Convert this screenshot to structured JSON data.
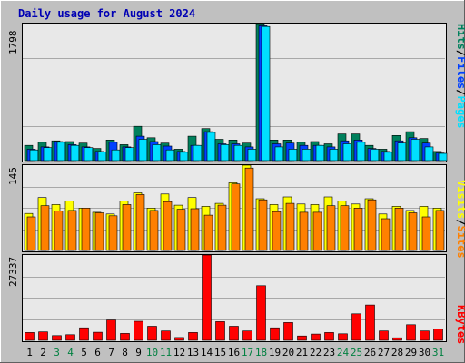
{
  "title": "Daily usage for August 2024",
  "colors": {
    "background": "#c0c0c0",
    "plot_background": "#e8e8e8",
    "title": "#0000b4",
    "hits": "#00805c",
    "files": "#0040ff",
    "pages": "#00e0ff",
    "visits": "#ffff00",
    "sites": "#ff8000",
    "kbytes": "#ff0000",
    "weekend_label": "#008040"
  },
  "legend": {
    "pages": "Pages",
    "files": "Files",
    "hits": "Hits",
    "sep": "/",
    "sites": "Sites",
    "visits": "Visits",
    "kbytes": "KBytes"
  },
  "chart_data": [
    {
      "type": "bar",
      "panel": "hits-files-pages",
      "ymax_label": "1798",
      "ylim": [
        0,
        1798
      ],
      "grid": true,
      "categories": [
        "1",
        "2",
        "3",
        "4",
        "5",
        "6",
        "7",
        "8",
        "9",
        "10",
        "11",
        "12",
        "13",
        "14",
        "15",
        "16",
        "17",
        "18",
        "19",
        "20",
        "21",
        "22",
        "23",
        "24",
        "25",
        "26",
        "27",
        "28",
        "29",
        "30",
        "31"
      ],
      "weekend_days": [
        "3",
        "4",
        "10",
        "11",
        "17",
        "18",
        "24",
        "25",
        "31"
      ],
      "series": [
        {
          "name": "Hits",
          "values": [
            200,
            240,
            260,
            250,
            230,
            160,
            270,
            210,
            450,
            300,
            230,
            150,
            320,
            420,
            280,
            270,
            230,
            1798,
            270,
            270,
            240,
            250,
            220,
            350,
            350,
            200,
            150,
            330,
            380,
            290,
            120
          ]
        },
        {
          "name": "Files",
          "values": [
            150,
            180,
            250,
            210,
            180,
            120,
            240,
            180,
            320,
            250,
            190,
            120,
            200,
            380,
            220,
            220,
            180,
            1770,
            220,
            230,
            200,
            200,
            180,
            260,
            270,
            160,
            120,
            260,
            300,
            230,
            100
          ]
        },
        {
          "name": "Pages",
          "values": [
            140,
            170,
            240,
            200,
            170,
            115,
            140,
            170,
            280,
            210,
            140,
            110,
            200,
            370,
            210,
            200,
            150,
            1760,
            180,
            150,
            150,
            200,
            150,
            220,
            240,
            150,
            110,
            230,
            280,
            180,
            95
          ]
        }
      ]
    },
    {
      "type": "bar",
      "panel": "visits-sites",
      "ymax_label": "145",
      "ylim": [
        0,
        145
      ],
      "grid": true,
      "categories": [
        "1",
        "2",
        "3",
        "4",
        "5",
        "6",
        "7",
        "8",
        "9",
        "10",
        "11",
        "12",
        "13",
        "14",
        "15",
        "16",
        "17",
        "18",
        "19",
        "20",
        "21",
        "22",
        "23",
        "24",
        "25",
        "26",
        "27",
        "28",
        "29",
        "30",
        "31"
      ],
      "series": [
        {
          "name": "Visits",
          "values": [
            63,
            90,
            78,
            84,
            72,
            65,
            62,
            84,
            98,
            72,
            96,
            77,
            90,
            75,
            80,
            115,
            145,
            88,
            78,
            91,
            79,
            78,
            91,
            84,
            79,
            88,
            62,
            75,
            68,
            75,
            72
          ]
        },
        {
          "name": "Sites",
          "values": [
            57,
            76,
            67,
            68,
            72,
            64,
            59,
            78,
            95,
            68,
            83,
            70,
            71,
            60,
            77,
            113,
            140,
            86,
            66,
            80,
            65,
            65,
            76,
            76,
            72,
            86,
            54,
            72,
            64,
            57,
            68
          ]
        }
      ]
    },
    {
      "type": "bar",
      "panel": "kbytes",
      "ymax_label": "27337",
      "ylim": [
        0,
        27337
      ],
      "grid": true,
      "categories": [
        "1",
        "2",
        "3",
        "4",
        "5",
        "6",
        "7",
        "8",
        "9",
        "10",
        "11",
        "12",
        "13",
        "14",
        "15",
        "16",
        "17",
        "18",
        "19",
        "20",
        "21",
        "22",
        "23",
        "24",
        "25",
        "26",
        "27",
        "28",
        "29",
        "30",
        "31"
      ],
      "series": [
        {
          "name": "KBytes",
          "values": [
            2500,
            2700,
            1500,
            1800,
            4000,
            2600,
            6500,
            2200,
            6100,
            4500,
            3000,
            900,
            2500,
            27337,
            6000,
            4500,
            3000,
            17500,
            4000,
            5700,
            1400,
            2000,
            2500,
            2100,
            8500,
            11300,
            3000,
            800,
            5000,
            3000,
            3600
          ]
        }
      ]
    }
  ]
}
